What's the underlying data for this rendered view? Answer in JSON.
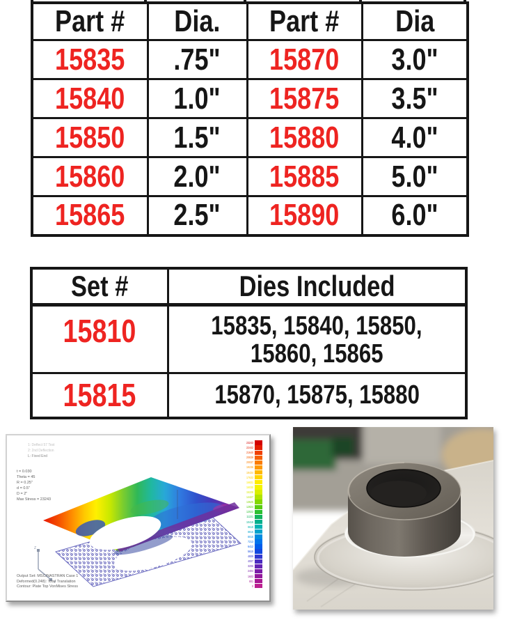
{
  "colors": {
    "part_number_red": "#ee2421",
    "table_ink": "#161616"
  },
  "size_table": {
    "headers": [
      "Part #",
      "Dia.",
      "Part #",
      "Dia"
    ],
    "rows": [
      [
        "15835",
        ".75\"",
        "15870",
        "3.0\""
      ],
      [
        "15840",
        "1.0\"",
        "15875",
        "3.5\""
      ],
      [
        "15850",
        "1.5\"",
        "15880",
        "4.0\""
      ],
      [
        "15860",
        "2.0\"",
        "15885",
        "5.0\""
      ],
      [
        "15865",
        "2.5\"",
        "15890",
        "6.0\""
      ]
    ]
  },
  "set_table": {
    "headers": [
      "Set #",
      "Dies Included"
    ],
    "rows": [
      {
        "set": "15810",
        "dies_line1": "15835, 15840, 15850,",
        "dies_line2": "15860, 15865"
      },
      {
        "set": "15815",
        "dies_line1": "15870, 15875, 15880"
      }
    ]
  },
  "fea": {
    "view_labels": [
      "1: Deflect 57 Test",
      "2: 2nd Deflection",
      "L: Fixed End"
    ],
    "params": [
      "t = 0.030",
      "Theta = 45",
      "R = 0.25\"",
      "d = 0.5\"",
      "D = 2\"",
      "Max Stress = 23243"
    ],
    "footer": [
      "Output Set: MSC/NASTRAN Case 1",
      "Deformed(0.248): Total Translation",
      "Contour: Plate Top VonMises Stress"
    ],
    "axis_labels": [
      "Z",
      "Y"
    ],
    "colorbar": {
      "values": [
        23243,
        22442,
        21640,
        20839,
        20037,
        19236,
        18434,
        17633,
        16831,
        16030,
        15228,
        14427,
        13625,
        12824,
        12022,
        11221,
        10419,
        9618,
        8816,
        8015,
        7213,
        6412,
        5610,
        4809,
        4007,
        3206,
        2404,
        1603,
        801,
        0
      ],
      "colors": [
        "#d40000",
        "#e31e00",
        "#f04000",
        "#f66000",
        "#fb7d00",
        "#ff9a00",
        "#ffb800",
        "#ffd400",
        "#ffec00",
        "#f4f400",
        "#d8ee00",
        "#b0e400",
        "#84d800",
        "#58cc10",
        "#2cc030",
        "#10b45c",
        "#00b08c",
        "#00b4b4",
        "#00a4cc",
        "#008ce0",
        "#0074ec",
        "#005cec",
        "#1248e0",
        "#3038d0",
        "#4c2cc0",
        "#6424b4",
        "#7c1ca8",
        "#92189c",
        "#a81894",
        "#bc2090"
      ]
    }
  }
}
